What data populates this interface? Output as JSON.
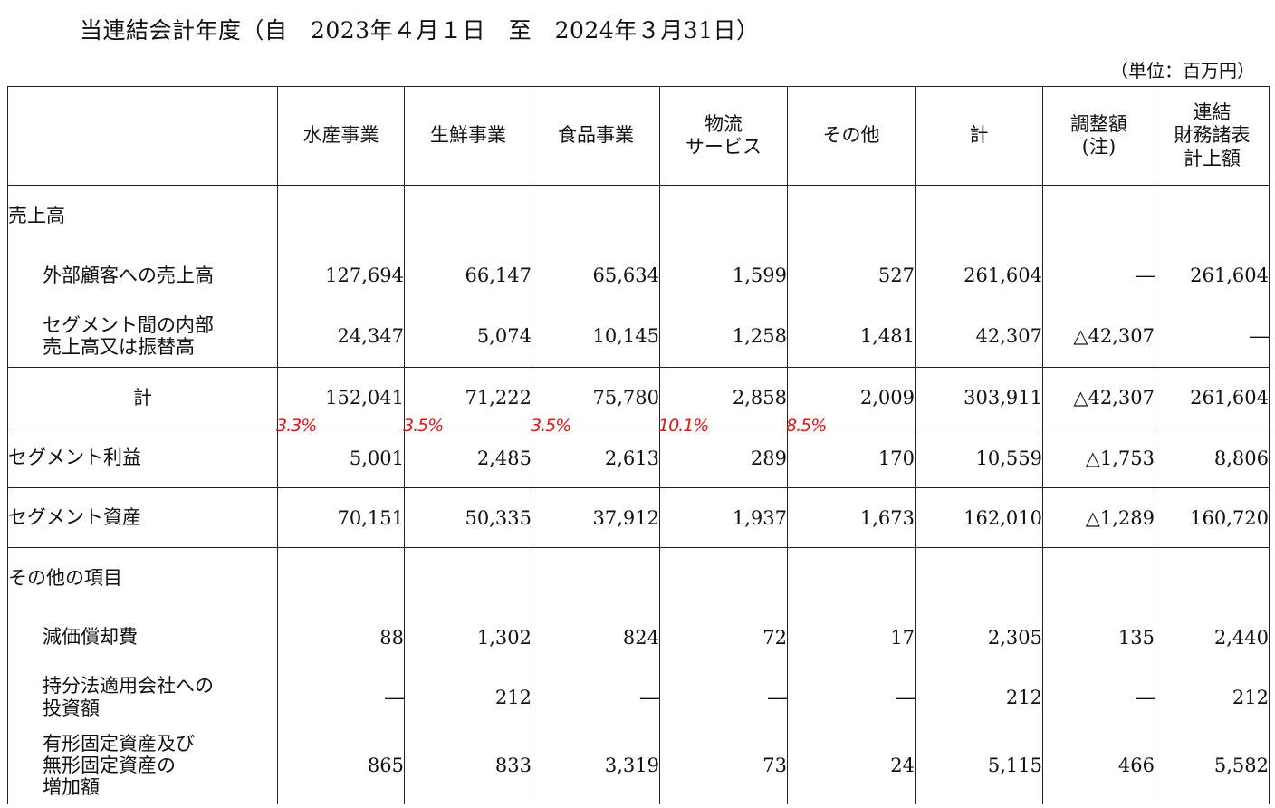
{
  "title": "当連結会計年度（自　2023年４月１日　至　2024年３月31日）",
  "unit": "（単位：百万円）",
  "columns": [
    "水産事業",
    "生鮮事業",
    "食品事業",
    "物流\nサービス",
    "その他",
    "計",
    "調整額\n(注)",
    "連結\n財務諸表\n計上額"
  ],
  "rows": {
    "sales_heading": "売上高",
    "external": {
      "label": "外部顧客への売上高",
      "values": [
        "127,694",
        "66,147",
        "65,634",
        "1,599",
        "527",
        "261,604",
        "―",
        "261,604"
      ]
    },
    "intersegment": {
      "label": "セグメント間の内部\n売上高又は振替高",
      "values": [
        "24,347",
        "5,074",
        "10,145",
        "1,258",
        "1,481",
        "42,307",
        "△42,307",
        "―"
      ]
    },
    "total": {
      "label": "計",
      "values": [
        "152,041",
        "71,222",
        "75,780",
        "2,858",
        "2,009",
        "303,911",
        "△42,307",
        "261,604"
      ]
    },
    "profit": {
      "label": "セグメント利益",
      "values": [
        "5,001",
        "2,485",
        "2,613",
        "289",
        "170",
        "10,559",
        "△1,753",
        "8,806"
      ],
      "annotations": [
        "3.3%",
        "3.5%",
        "3.5%",
        "10.1%",
        "8.5%"
      ]
    },
    "assets": {
      "label": "セグメント資産",
      "values": [
        "70,151",
        "50,335",
        "37,912",
        "1,937",
        "1,673",
        "162,010",
        "△1,289",
        "160,720"
      ]
    },
    "other_heading": "その他の項目",
    "depreciation": {
      "label": "減価償却費",
      "values": [
        "88",
        "1,302",
        "824",
        "72",
        "17",
        "2,305",
        "135",
        "2,440"
      ]
    },
    "equity_investment": {
      "label": "持分法適用会社への\n投資額",
      "values": [
        "―",
        "212",
        "―",
        "―",
        "―",
        "212",
        "―",
        "212"
      ]
    },
    "capex": {
      "label": "有形固定資産及び\n無形固定資産の\n増加額",
      "values": [
        "865",
        "833",
        "3,319",
        "73",
        "24",
        "5,115",
        "466",
        "5,582"
      ]
    }
  },
  "colors": {
    "annotation": "#e0161a",
    "border": "#222222"
  }
}
